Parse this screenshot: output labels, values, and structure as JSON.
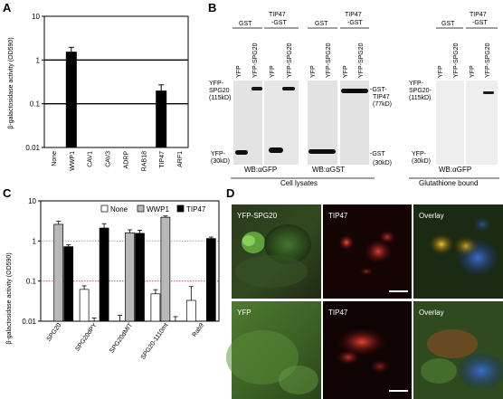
{
  "panels": {
    "A": {
      "letter": "A",
      "chart_data": {
        "type": "bar",
        "ylabel": "β-galactosidase activity (OD590)",
        "yscale": "log",
        "ylim": [
          0.01,
          10
        ],
        "yticks": [
          "10",
          "1",
          "0.1",
          "0.01"
        ],
        "reference_lines": [
          1,
          0.1
        ],
        "categories": [
          "None",
          "WWP1",
          "CAV1",
          "CAV3",
          "ADRP",
          "RAB18",
          "TIP47",
          "ARF1"
        ],
        "values": [
          0.01,
          1.55,
          0.01,
          0.01,
          0.01,
          0.01,
          0.2,
          0.01
        ],
        "errors": [
          0,
          0.4,
          0,
          0,
          0,
          0,
          0.07,
          0
        ],
        "bar_color": "#000000"
      }
    },
    "B": {
      "letter": "B",
      "blots": [
        {
          "name": "cell-lysate-gfp-blot",
          "groups": [
            "GST",
            "TIP47\n-GST"
          ],
          "lanes": [
            "YFP",
            "YFP-SPG20",
            "YFP",
            "YFP-SPG20"
          ],
          "left_labels": [
            "YFP-\nSPG20\n(115kD)",
            "YFP-\n(30kD)"
          ],
          "right_labels": [],
          "wb": "WB:αGFP"
        },
        {
          "name": "cell-lysate-gst-blot",
          "groups": [
            "GST",
            "TIP47\n-GST"
          ],
          "lanes": [
            "YFP",
            "YFP-SPG20",
            "YFP",
            "YFP-SPG20"
          ],
          "left_labels": [],
          "right_labels": [
            "-GST-\nTIP47\n(77kD)",
            "-GST\n(30kD)"
          ],
          "wb": "WB:αGST"
        },
        {
          "name": "glutathione-bound-blot",
          "groups": [
            "GST",
            "TIP47\n-GST"
          ],
          "lanes": [
            "YFP",
            "YFP-SPG20",
            "YFP",
            "YFP-SPG20"
          ],
          "left_labels": [
            "YFP-\nSPG20-\n(115kD)",
            "YFP-\n(30kD)"
          ],
          "right_labels": [],
          "wb": "WB:αGFP"
        }
      ],
      "section_labels": [
        "Cell lysates",
        "Glutathione bound"
      ]
    },
    "C": {
      "letter": "C",
      "chart_data": {
        "type": "bar",
        "ylabel": "β-galactosidase activity (OD590)",
        "yscale": "log",
        "ylim": [
          0.01,
          10
        ],
        "yticks": [
          "10",
          "1",
          "0.1",
          "0.01"
        ],
        "reference_lines": [
          1,
          0.1
        ],
        "categories": [
          "SPG20",
          "SPG20dPY",
          "SPG20dMIT",
          "SPG20-1110mt",
          "Rab9"
        ],
        "series": [
          {
            "name": "None",
            "color": "#ffffff",
            "values": [
              0.01,
              0.062,
              0.01,
              0.048,
              0.033
            ],
            "errors": [
              0,
              0.014,
              0.004,
              0.013,
              0.04
            ]
          },
          {
            "name": "WWP1",
            "color": "#b8b8b8",
            "values": [
              2.6,
              0.01,
              1.6,
              3.9,
              0.01
            ],
            "errors": [
              0.5,
              0.002,
              0.3,
              0.3,
              0
            ]
          },
          {
            "name": "TIP47",
            "color": "#000000",
            "values": [
              0.72,
              2.1,
              1.55,
              0.01,
              1.15
            ],
            "errors": [
              0.08,
              0.6,
              0.3,
              0.003,
              0.1
            ]
          }
        ],
        "reference_line_colors": [
          "#999999",
          "#cc3333"
        ]
      }
    },
    "D": {
      "letter": "D",
      "rows": [
        [
          "YFP-SPG20",
          "TIP47",
          "Overlay"
        ],
        [
          "YFP",
          "TIP47",
          "Overlay"
        ]
      ]
    }
  }
}
